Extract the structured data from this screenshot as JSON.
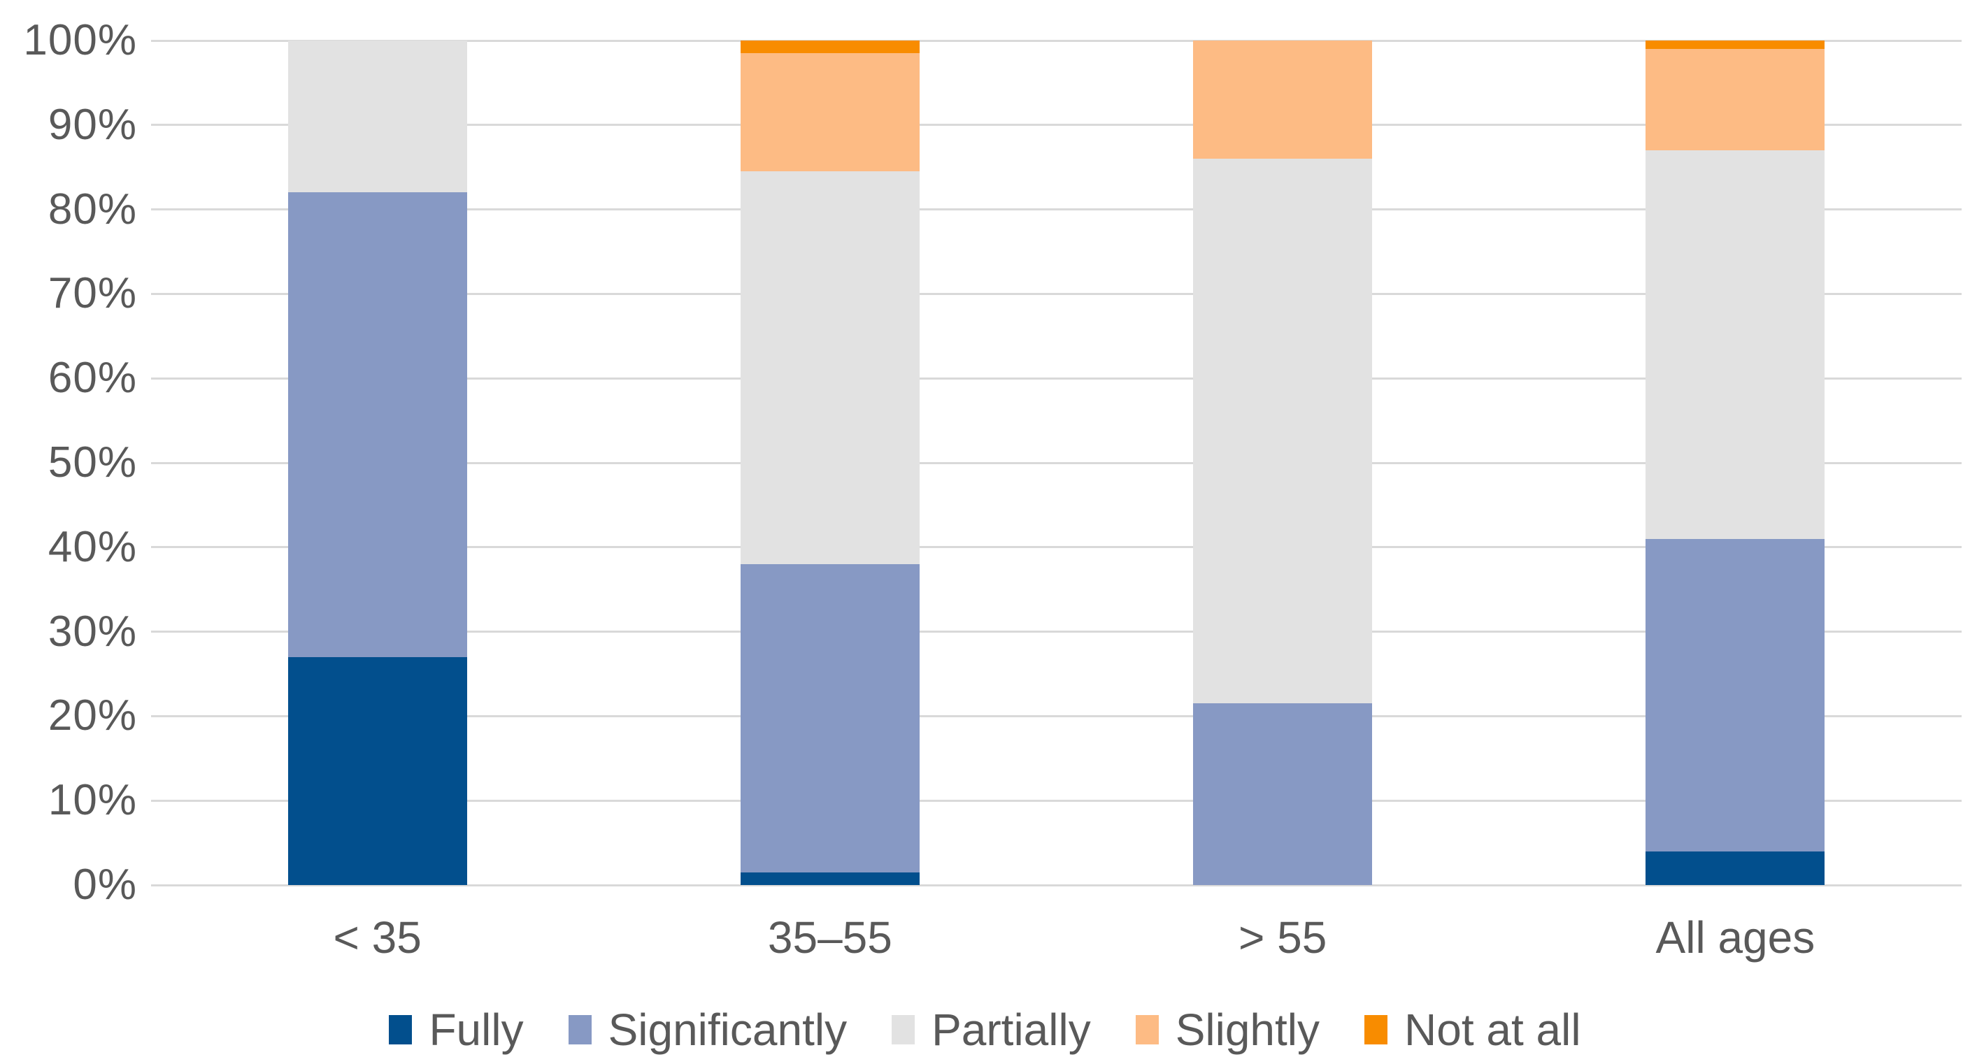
{
  "chart_data": {
    "type": "bar",
    "subtype": "stacked-100-percent-column",
    "title": "",
    "xlabel": "",
    "ylabel": "",
    "grid": true,
    "legend_position": "bottom-center",
    "ylim": [
      0,
      100
    ],
    "y_ticks": [
      0,
      10,
      20,
      30,
      40,
      50,
      60,
      70,
      80,
      90,
      100
    ],
    "y_tick_suffix": "%",
    "y_tick_labels": [
      "0%",
      "10%",
      "20%",
      "30%",
      "40%",
      "50%",
      "60%",
      "70%",
      "80%",
      "90%",
      "100%"
    ],
    "categories": [
      "< 35",
      "35–55",
      "> 55",
      "All ages"
    ],
    "series": [
      {
        "name": "Fully",
        "color": "#024F8D",
        "values": [
          27,
          1.5,
          0,
          4
        ]
      },
      {
        "name": "Significantly",
        "color": "#8799C4",
        "values": [
          55,
          36.5,
          21.5,
          37
        ]
      },
      {
        "name": "Partially",
        "color": "#E2E2E2",
        "values": [
          18,
          46.5,
          64.5,
          46
        ]
      },
      {
        "name": "Slightly",
        "color": "#FDBB84",
        "values": [
          0,
          14,
          14,
          12
        ]
      },
      {
        "name": "Not at all",
        "color": "#F88C00",
        "values": [
          0,
          1.5,
          0,
          1
        ]
      }
    ]
  },
  "colors": {
    "text": "#595959",
    "gridline": "#D9D9D9",
    "background": "#FFFFFF"
  }
}
